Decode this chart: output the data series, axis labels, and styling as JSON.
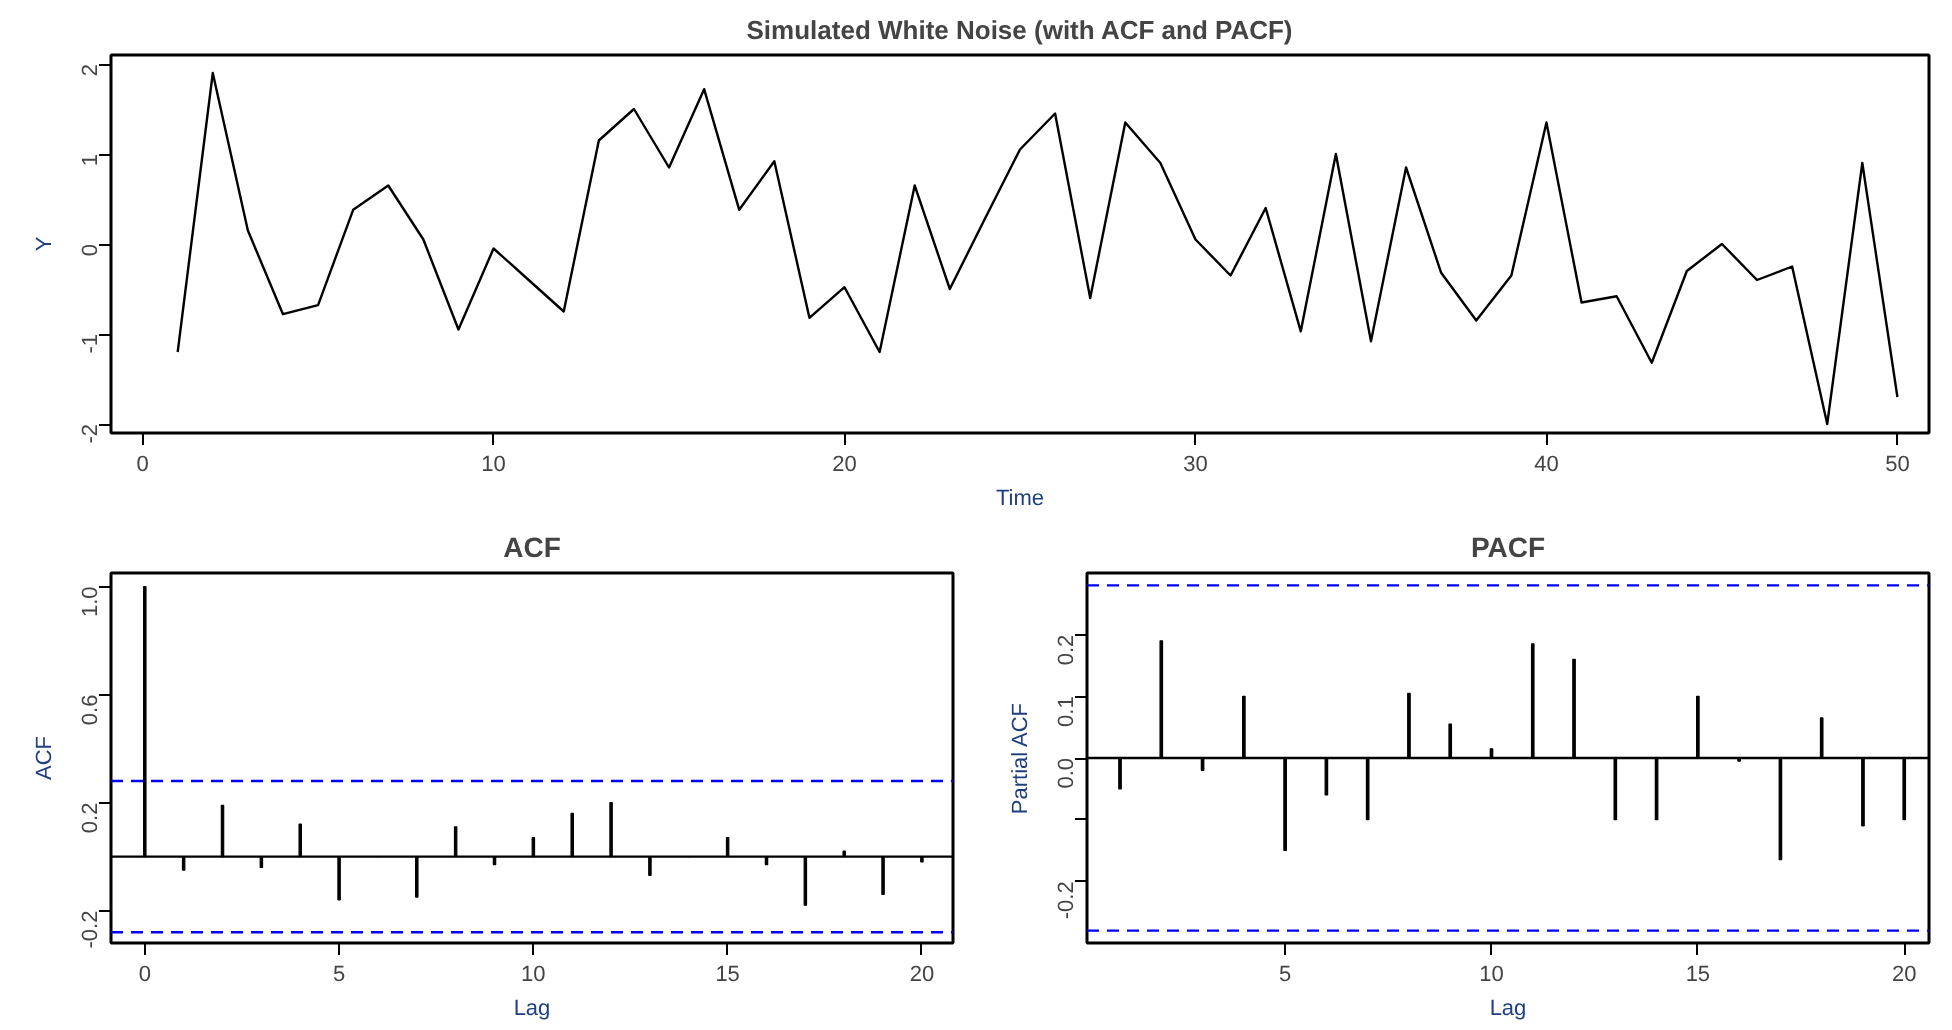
{
  "chart_data": [
    {
      "type": "line",
      "title": "Simulated White Noise (with ACF and PACF)",
      "xlabel": "Time",
      "ylabel": "Y",
      "color": "#000000",
      "marker": "none",
      "line_style": "solid",
      "x": [
        1,
        2,
        3,
        4,
        5,
        6,
        7,
        8,
        9,
        10,
        11,
        12,
        13,
        14,
        15,
        16,
        17,
        18,
        19,
        20,
        21,
        22,
        23,
        24,
        25,
        26,
        27,
        28,
        29,
        30,
        31,
        32,
        33,
        34,
        35,
        36,
        37,
        38,
        39,
        40,
        41,
        42,
        43,
        44,
        45,
        46,
        47,
        48,
        49,
        50
      ],
      "values": [
        -1.2,
        1.9,
        0.15,
        -0.78,
        -0.68,
        0.38,
        0.65,
        0.05,
        -0.95,
        -0.05,
        -0.4,
        -0.75,
        1.15,
        1.5,
        0.85,
        1.72,
        0.38,
        0.92,
        -0.82,
        -0.48,
        -1.2,
        0.65,
        -0.5,
        0.28,
        1.05,
        1.45,
        -0.6,
        1.35,
        0.9,
        0.05,
        -0.35,
        0.4,
        -0.97,
        1.0,
        -1.08,
        0.85,
        -0.32,
        -0.85,
        -0.35,
        1.35,
        -0.65,
        -0.58,
        -1.32,
        -0.3,
        0.0,
        -0.4,
        -0.25,
        -2.0,
        0.9,
        -1.7
      ],
      "xlim": [
        -0.9,
        50.9
      ],
      "ylim": [
        -2.1,
        2.1
      ],
      "xticks": [
        0,
        10,
        20,
        30,
        40,
        50
      ],
      "yticks": [
        -2,
        -1,
        0,
        1,
        2
      ]
    },
    {
      "type": "bar",
      "title": "ACF",
      "xlabel": "Lag",
      "ylabel": "ACF",
      "color": "#000000",
      "x": [
        0,
        1,
        2,
        3,
        4,
        5,
        6,
        7,
        8,
        9,
        10,
        11,
        12,
        13,
        14,
        15,
        16,
        17,
        18,
        19,
        20
      ],
      "values": [
        1.0,
        -0.05,
        0.19,
        -0.04,
        0.12,
        -0.16,
        0.0,
        -0.15,
        0.11,
        -0.03,
        0.07,
        0.16,
        0.2,
        -0.07,
        0.0,
        0.07,
        -0.03,
        -0.18,
        0.02,
        -0.14,
        -0.02
      ],
      "xlim": [
        -0.87,
        20.8
      ],
      "ylim": [
        -0.32,
        1.05
      ],
      "xticks": [
        0,
        5,
        10,
        15,
        20
      ],
      "yticks": [
        -0.2,
        0.2,
        0.6,
        {
          "value": 1,
          "label": "1.0"
        }
      ],
      "ref_lines": [
        {
          "axis": "y",
          "value": 0,
          "color": "#000000",
          "line_style": "solid"
        },
        {
          "axis": "y",
          "value": 0.28,
          "color": "#0000ff",
          "line_style": "dashed"
        },
        {
          "axis": "y",
          "value": -0.28,
          "color": "#0000ff",
          "line_style": "dashed"
        }
      ]
    },
    {
      "type": "bar",
      "title": "PACF",
      "xlabel": "Lag",
      "ylabel": "Partial ACF",
      "color": "#000000",
      "x": [
        1,
        2,
        3,
        4,
        5,
        6,
        7,
        8,
        9,
        10,
        11,
        12,
        13,
        14,
        15,
        16,
        17,
        18,
        19,
        20
      ],
      "values": [
        -0.05,
        0.19,
        -0.02,
        0.1,
        -0.15,
        -0.06,
        -0.1,
        0.105,
        0.055,
        0.015,
        0.185,
        0.16,
        -0.1,
        -0.1,
        0.1,
        -0.005,
        -0.165,
        0.065,
        -0.11,
        -0.1
      ],
      "xlim": [
        0.2,
        20.6
      ],
      "ylim": [
        -0.3,
        0.3
      ],
      "xticks": [
        5,
        10,
        15,
        20
      ],
      "yticks": [
        -0.2,
        {
          "value": -0.1,
          "label": null
        },
        {
          "value": 0,
          "label": "0.0"
        },
        0.1,
        0.2
      ],
      "ref_lines": [
        {
          "axis": "y",
          "value": 0,
          "color": "#000000",
          "line_style": "solid"
        },
        {
          "axis": "y",
          "value": 0.28,
          "color": "#0000ff",
          "line_style": "dashed"
        },
        {
          "axis": "y",
          "value": -0.28,
          "color": "#0000ff",
          "line_style": "dashed"
        }
      ]
    }
  ]
}
